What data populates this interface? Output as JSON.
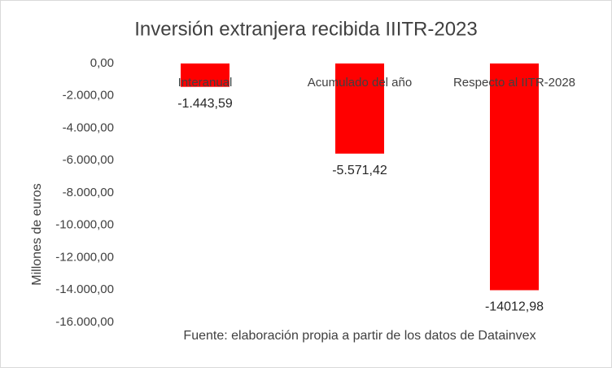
{
  "chart_data": {
    "type": "bar",
    "title": "Inversión extranjera recibida IIITR-2023",
    "y_label": "Millones de euros",
    "note": "Fuente: elaboración propia a partir de los datos de Datainvex",
    "categories": [
      "Interanual",
      "Acumulado del año",
      "Respecto al IITR-2028"
    ],
    "values": [
      -1443.59,
      -5571.42,
      -14012.98
    ],
    "value_labels": [
      "-1.443,59",
      "-5.571,42",
      "-14012,98"
    ],
    "color": "#ff0000",
    "ylim": [
      -16000,
      0
    ],
    "yticks": [
      {
        "value": 0,
        "label": "0,00"
      },
      {
        "value": -2000,
        "label": "-2.000,00"
      },
      {
        "value": -4000,
        "label": "-4.000,00"
      },
      {
        "value": -6000,
        "label": "-6.000,00"
      },
      {
        "value": -8000,
        "label": "-8.000,00"
      },
      {
        "value": -10000,
        "label": "-10.000,00"
      },
      {
        "value": -12000,
        "label": "-12.000,00"
      },
      {
        "value": -14000,
        "label": "-14.000,00"
      },
      {
        "value": -16000,
        "label": "-16.000,00"
      }
    ]
  }
}
